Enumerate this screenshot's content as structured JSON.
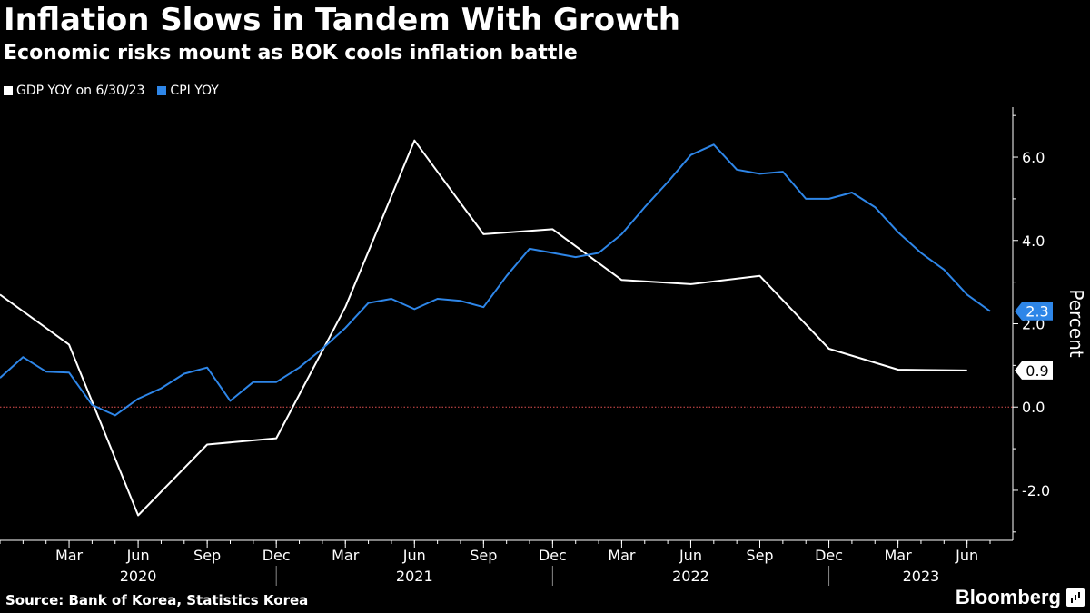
{
  "header": {
    "title": "Inflation Slows in Tandem With Growth",
    "subtitle": "Economic risks mount as BOK cools inflation battle"
  },
  "footer": {
    "source": "Source: Bank of Korea, Statistics Korea",
    "brand": "Bloomberg"
  },
  "colors": {
    "gdp": "#ffffff",
    "cpi": "#2e86e8",
    "zero_line": "#e05050",
    "background": "#000000"
  },
  "chart_data": {
    "type": "line",
    "title": "Inflation Slows in Tandem With Growth",
    "subtitle": "Economic risks mount as BOK cools inflation battle",
    "ylabel": "Percent",
    "xlabel": "",
    "xlim": [
      "2019-12",
      "2023-07"
    ],
    "ylim": [
      -3.2,
      7.2
    ],
    "y_ticks": [
      -2.0,
      0.0,
      2.0,
      4.0,
      6.0
    ],
    "y_tick_labels": [
      "-2.0",
      "0.0",
      "2.0",
      "4.0",
      "6.0"
    ],
    "x_month_ticks": [
      {
        "date": "2020-03",
        "label": "Mar"
      },
      {
        "date": "2020-06",
        "label": "Jun"
      },
      {
        "date": "2020-09",
        "label": "Sep"
      },
      {
        "date": "2020-12",
        "label": "Dec"
      },
      {
        "date": "2021-03",
        "label": "Mar"
      },
      {
        "date": "2021-06",
        "label": "Jun"
      },
      {
        "date": "2021-09",
        "label": "Sep"
      },
      {
        "date": "2021-12",
        "label": "Dec"
      },
      {
        "date": "2022-03",
        "label": "Mar"
      },
      {
        "date": "2022-06",
        "label": "Jun"
      },
      {
        "date": "2022-09",
        "label": "Sep"
      },
      {
        "date": "2022-12",
        "label": "Dec"
      },
      {
        "date": "2023-03",
        "label": "Mar"
      },
      {
        "date": "2023-06",
        "label": "Jun"
      }
    ],
    "x_year_labels": [
      {
        "date": "2020-06",
        "label": "2020"
      },
      {
        "date": "2021-06",
        "label": "2021"
      },
      {
        "date": "2022-06",
        "label": "2022"
      },
      {
        "date": "2023-04",
        "label": "2023"
      }
    ],
    "x_year_separators": [
      "2020-12",
      "2021-12",
      "2022-12"
    ],
    "zero_line": 0,
    "grid": false,
    "legend_position": "top-left",
    "series": [
      {
        "name": "GDP YOY on 6/30/23",
        "color": "#ffffff",
        "end_label": "0.9",
        "points": [
          [
            "2019-12",
            2.7
          ],
          [
            "2020-03",
            1.5
          ],
          [
            "2020-06",
            -2.6
          ],
          [
            "2020-09",
            -0.9
          ],
          [
            "2020-12",
            -0.75
          ],
          [
            "2021-03",
            2.4
          ],
          [
            "2021-06",
            6.4
          ],
          [
            "2021-09",
            4.15
          ],
          [
            "2021-12",
            4.27
          ],
          [
            "2022-03",
            3.05
          ],
          [
            "2022-06",
            2.95
          ],
          [
            "2022-09",
            3.15
          ],
          [
            "2022-12",
            1.4
          ],
          [
            "2023-03",
            0.9
          ],
          [
            "2023-06",
            0.88
          ]
        ]
      },
      {
        "name": "CPI YOY",
        "color": "#2e86e8",
        "end_label": "2.3",
        "points": [
          [
            "2019-12",
            0.7
          ],
          [
            "2020-01",
            1.2
          ],
          [
            "2020-02",
            0.85
          ],
          [
            "2020-03",
            0.83
          ],
          [
            "2020-04",
            0.05
          ],
          [
            "2020-05",
            -0.2
          ],
          [
            "2020-06",
            0.2
          ],
          [
            "2020-07",
            0.45
          ],
          [
            "2020-08",
            0.8
          ],
          [
            "2020-09",
            0.95
          ],
          [
            "2020-10",
            0.15
          ],
          [
            "2020-11",
            0.6
          ],
          [
            "2020-12",
            0.6
          ],
          [
            "2021-01",
            0.95
          ],
          [
            "2021-02",
            1.4
          ],
          [
            "2021-03",
            1.9
          ],
          [
            "2021-04",
            2.5
          ],
          [
            "2021-05",
            2.6
          ],
          [
            "2021-06",
            2.35
          ],
          [
            "2021-07",
            2.6
          ],
          [
            "2021-08",
            2.55
          ],
          [
            "2021-09",
            2.4
          ],
          [
            "2021-10",
            3.15
          ],
          [
            "2021-11",
            3.8
          ],
          [
            "2021-12",
            3.7
          ],
          [
            "2022-01",
            3.6
          ],
          [
            "2022-02",
            3.7
          ],
          [
            "2022-03",
            4.15
          ],
          [
            "2022-04",
            4.8
          ],
          [
            "2022-05",
            5.4
          ],
          [
            "2022-06",
            6.05
          ],
          [
            "2022-07",
            6.3
          ],
          [
            "2022-08",
            5.7
          ],
          [
            "2022-09",
            5.6
          ],
          [
            "2022-10",
            5.65
          ],
          [
            "2022-11",
            5.0
          ],
          [
            "2022-12",
            5.0
          ],
          [
            "2023-01",
            5.15
          ],
          [
            "2023-02",
            4.8
          ],
          [
            "2023-03",
            4.2
          ],
          [
            "2023-04",
            3.7
          ],
          [
            "2023-05",
            3.3
          ],
          [
            "2023-06",
            2.7
          ],
          [
            "2023-07",
            2.3
          ]
        ]
      }
    ]
  }
}
